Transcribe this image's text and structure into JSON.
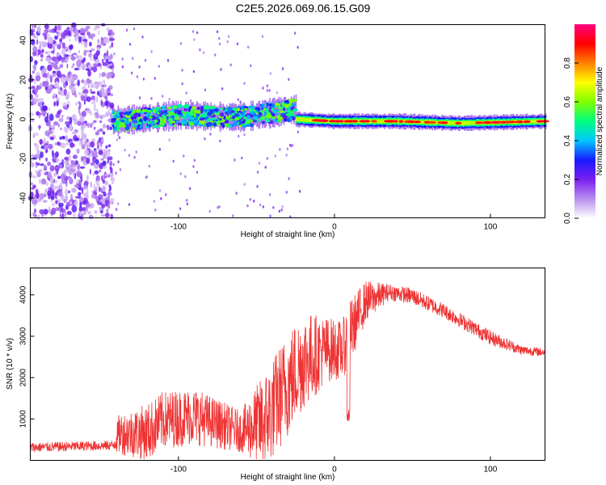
{
  "title": "C2E5.2026.069.06.15.G09",
  "chart_data": [
    {
      "type": "heatmap",
      "xlabel": "Height of straight line (km)",
      "ylabel": "Frequency (Hz)",
      "xlim": [
        -195,
        135
      ],
      "ylim": [
        -50,
        48
      ],
      "xticks": [
        -100,
        0,
        100
      ],
      "xtick_labels": [
        "-100",
        "0",
        "100"
      ],
      "yticks": [
        -40,
        -20,
        0,
        20,
        40
      ],
      "ytick_labels": [
        "-40",
        "-20",
        "0",
        "20",
        "40"
      ],
      "colorbar": {
        "label": "Normalized spectral amplitude",
        "range": [
          0.0,
          1.0
        ],
        "ticks": [
          0.0,
          0.2,
          0.4,
          0.6,
          0.8
        ],
        "tick_labels": [
          "0.0",
          "0.2",
          "0.4",
          "0.6",
          "0.8"
        ],
        "colors": [
          "#ffffff",
          "#b98ef0",
          "#7a1ff0",
          "#1a1aff",
          "#00c8ff",
          "#00ff80",
          "#80ff00",
          "#ffff00",
          "#ff8000",
          "#ff0000",
          "#ff0080"
        ]
      },
      "regions": [
        {
          "x_range": [
            -195,
            -142
          ],
          "freq_range": [
            -50,
            48
          ],
          "amplitude": 0.2
        },
        {
          "x_range": [
            -142,
            -25
          ],
          "center_freq": [
            [
              -142,
              -1
            ],
            [
              -100,
              2
            ],
            [
              -60,
              1
            ],
            [
              -25,
              5
            ]
          ],
          "halfwidth": 6,
          "amplitude": 0.4
        },
        {
          "x_range": [
            -25,
            135
          ],
          "center_freq": [
            [
              -25,
              0
            ],
            [
              0,
              -1
            ],
            [
              40,
              -1
            ],
            [
              80,
              -2
            ],
            [
              135,
              -1
            ]
          ],
          "halfwidth": 3,
          "amplitude": 0.85
        }
      ]
    },
    {
      "type": "line",
      "xlabel": "Height of straight line (km)",
      "ylabel": "SNR (10 * v/v)",
      "xlim": [
        -195,
        135
      ],
      "ylim": [
        0,
        4650
      ],
      "xticks": [
        -100,
        0,
        100
      ],
      "xtick_labels": [
        "-100",
        "0",
        "100"
      ],
      "yticks": [
        1000,
        2000,
        3000,
        4000
      ],
      "ytick_labels": [
        "1000",
        "2000",
        "3000",
        "4000"
      ],
      "series": [
        {
          "color": "#ee3333",
          "envelope": [
            {
              "x": -195,
              "base": 300,
              "amp": 120
            },
            {
              "x": -142,
              "base": 350,
              "amp": 120
            },
            {
              "x": -138,
              "base": 600,
              "amp": 500
            },
            {
              "x": -120,
              "base": 600,
              "amp": 700
            },
            {
              "x": -110,
              "base": 900,
              "amp": 700
            },
            {
              "x": -90,
              "base": 1000,
              "amp": 700
            },
            {
              "x": -60,
              "base": 650,
              "amp": 500
            },
            {
              "x": -45,
              "base": 800,
              "amp": 1200
            },
            {
              "x": -30,
              "base": 1700,
              "amp": 1300
            },
            {
              "x": -20,
              "base": 2300,
              "amp": 1200
            },
            {
              "x": -5,
              "base": 2600,
              "amp": 800
            },
            {
              "x": 5,
              "base": 2600,
              "amp": 700
            },
            {
              "x": 10,
              "base": 3000,
              "amp": 800
            },
            {
              "x": 20,
              "base": 3800,
              "amp": 500
            },
            {
              "x": 35,
              "base": 4050,
              "amp": 200
            },
            {
              "x": 50,
              "base": 3950,
              "amp": 200
            },
            {
              "x": 70,
              "base": 3600,
              "amp": 180
            },
            {
              "x": 100,
              "base": 2950,
              "amp": 180
            },
            {
              "x": 120,
              "base": 2650,
              "amp": 120
            },
            {
              "x": 135,
              "base": 2600,
              "amp": 100
            }
          ]
        }
      ]
    }
  ]
}
